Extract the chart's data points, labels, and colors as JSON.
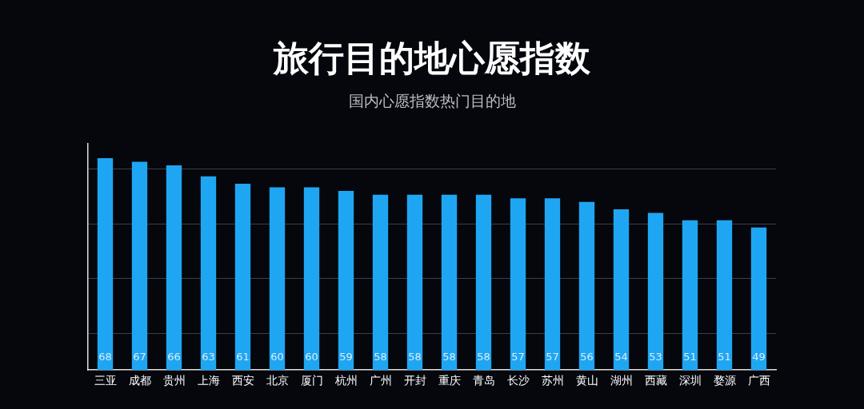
{
  "chart_data": {
    "type": "bar",
    "title": "旅行目的地心愿指数",
    "subtitle": "国内心愿指数热门目的地",
    "categories": [
      "三亚",
      "成都",
      "贵州",
      "上海",
      "西安",
      "北京",
      "厦门",
      "杭州",
      "广州",
      "开封",
      "重庆",
      "青岛",
      "长沙",
      "苏州",
      "黄山",
      "湖州",
      "西藏",
      "深圳",
      "婺源",
      "广西"
    ],
    "values": [
      68,
      67,
      66,
      63,
      61,
      60,
      60,
      59,
      58,
      58,
      58,
      58,
      57,
      57,
      56,
      54,
      53,
      51,
      51,
      49
    ],
    "color": "#1fa6f2",
    "data_labels": true,
    "grid": "y",
    "tick_labels": "x",
    "ylim": [
      10,
      72
    ],
    "yticks": [
      {
        "value": 20,
        "label": null
      },
      {
        "value": 35,
        "label": null
      },
      {
        "value": 50,
        "label": null
      },
      {
        "value": 65,
        "label": null
      }
    ]
  }
}
